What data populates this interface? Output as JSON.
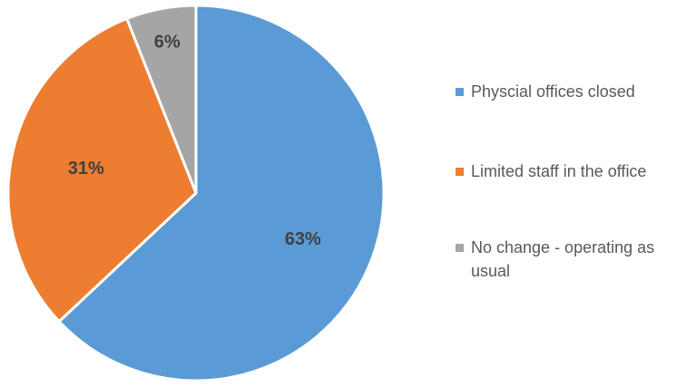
{
  "chart_data": {
    "type": "pie",
    "title": "",
    "categories": [
      "Physcial offices closed",
      "Limited staff in the office",
      "No change - operating as usual"
    ],
    "values": [
      63,
      31,
      6
    ],
    "labels": [
      "63%",
      "31%",
      "6%"
    ],
    "colors": [
      "#5B9BD5",
      "#ED7D31",
      "#A5A5A5"
    ],
    "legend_position": "right"
  }
}
